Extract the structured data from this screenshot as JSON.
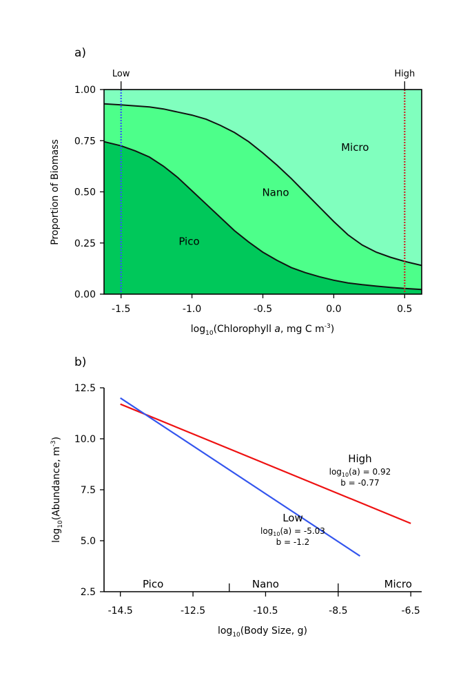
{
  "chart_data": [
    {
      "panel_label": "a)",
      "type": "area",
      "stacked": true,
      "xlabel_prefix": "log",
      "xlabel_sub": "10",
      "xlabel_mid": "(Chlorophyll ",
      "xlabel_ital": "a",
      "xlabel_unit": ", mg C m",
      "xlabel_sup": "-3",
      "xlabel_end": ")",
      "ylabel": "Proportion of Biomass",
      "xlim": [
        -1.62,
        0.62
      ],
      "ylim": [
        0.0,
        1.0
      ],
      "xticks": [
        -1.5,
        -1.0,
        -0.5,
        0.0,
        0.5
      ],
      "xtick_labels": [
        "-1.5",
        "-1.0",
        "-0.5",
        "0.0",
        "0.5"
      ],
      "yticks": [
        0.0,
        0.25,
        0.5,
        0.75,
        1.0
      ],
      "ytick_labels": [
        "0.00",
        "0.25",
        "0.50",
        "0.75",
        "1.00"
      ],
      "x": [
        -1.62,
        -1.5,
        -1.4,
        -1.3,
        -1.2,
        -1.1,
        -1.0,
        -0.9,
        -0.8,
        -0.7,
        -0.6,
        -0.5,
        -0.4,
        -0.3,
        -0.2,
        -0.1,
        0.0,
        0.1,
        0.2,
        0.3,
        0.4,
        0.5,
        0.62
      ],
      "series": [
        {
          "name": "Pico",
          "color": "#00c85a",
          "upper": [
            0.745,
            0.725,
            0.7,
            0.67,
            0.625,
            0.57,
            0.505,
            0.44,
            0.375,
            0.31,
            0.255,
            0.205,
            0.165,
            0.13,
            0.105,
            0.085,
            0.068,
            0.055,
            0.046,
            0.039,
            0.033,
            0.028,
            0.023
          ]
        },
        {
          "name": "Nano",
          "color": "#4dff8a",
          "upper": [
            0.93,
            0.925,
            0.92,
            0.915,
            0.905,
            0.89,
            0.875,
            0.855,
            0.825,
            0.79,
            0.745,
            0.69,
            0.63,
            0.565,
            0.495,
            0.425,
            0.355,
            0.29,
            0.24,
            0.205,
            0.18,
            0.16,
            0.14
          ]
        },
        {
          "name": "Micro",
          "color": "#80ffbe",
          "upper": [
            1,
            1,
            1,
            1,
            1,
            1,
            1,
            1,
            1,
            1,
            1,
            1,
            1,
            1,
            1,
            1,
            1,
            1,
            1,
            1,
            1,
            1,
            1
          ]
        }
      ],
      "labels": [
        {
          "text": "Micro",
          "x": 0.15,
          "y": 0.7
        },
        {
          "text": "Nano",
          "x": -0.41,
          "y": 0.48
        },
        {
          "text": "Pico",
          "x": -1.02,
          "y": 0.24
        }
      ],
      "markers": [
        {
          "name": "Low",
          "x": -1.5,
          "color": "#3355ff"
        },
        {
          "name": "High",
          "x": 0.5,
          "color": "#cc2222"
        }
      ]
    },
    {
      "panel_label": "b)",
      "type": "line",
      "xlabel_prefix": "log",
      "xlabel_sub": "10",
      "xlabel_mid": "(Body Size, g)",
      "ylabel_prefix": "log",
      "ylabel_sub": "10",
      "ylabel_mid": "(Abundance, m",
      "ylabel_sup": "-3",
      "ylabel_end": ")",
      "xlim": [
        -14.95,
        -6.2
      ],
      "ylim": [
        2.5,
        12.5
      ],
      "xticks": [
        -14.5,
        -12.5,
        -10.5,
        -8.5,
        -6.5
      ],
      "xtick_labels": [
        "-14.5",
        "-12.5",
        "-10.5",
        "-8.5",
        "-6.5"
      ],
      "minor_ticks": [
        -11.5,
        -8.5
      ],
      "yticks": [
        2.5,
        5.0,
        7.5,
        10.0,
        12.5
      ],
      "ytick_labels": [
        "2.5",
        "5.0",
        "7.5",
        "10.0",
        "12.5"
      ],
      "size_classes": [
        {
          "text": "Pico",
          "x": -13.6
        },
        {
          "text": "Nano",
          "x": -10.5
        },
        {
          "text": "Micro",
          "x": -6.85
        }
      ],
      "series": [
        {
          "name": "High",
          "color": "#ee1111",
          "x": [
            -14.5,
            -6.5
          ],
          "y": [
            11.7,
            5.85
          ],
          "annotation_prefix": "log",
          "annotation_sub": "10",
          "annotation_a": "(a) = 0.92",
          "annotation_b": "b = -0.77",
          "label_x": -7.9,
          "label_y": 8.85
        },
        {
          "name": "Low",
          "color": "#3355ee",
          "x": [
            -14.5,
            -7.9
          ],
          "y": [
            12.0,
            4.25
          ],
          "annotation_prefix": "log",
          "annotation_sub": "10",
          "annotation_a": "(a) = -5.03",
          "annotation_b": "b = -1.2",
          "label_x": -9.75,
          "label_y": 5.95
        }
      ]
    }
  ]
}
